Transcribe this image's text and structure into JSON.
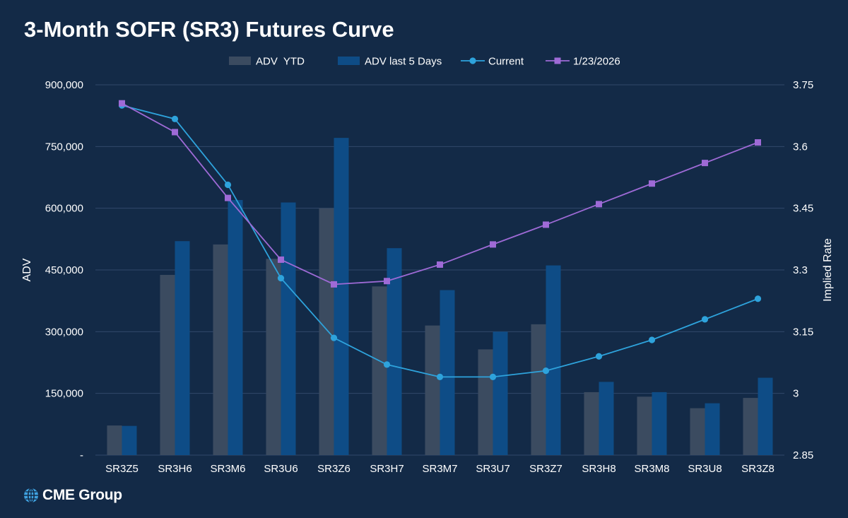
{
  "chart_data": {
    "type": "bar+line",
    "title": "3-Month SOFR (SR3) Futures Curve",
    "categories": [
      "SR3Z5",
      "SR3H6",
      "SR3M6",
      "SR3U6",
      "SR3Z6",
      "SR3H7",
      "SR3M7",
      "SR3U7",
      "SR3Z7",
      "SR3H8",
      "SR3M8",
      "SR3U8",
      "SR3Z8"
    ],
    "bar_series": [
      {
        "name": "ADV  YTD",
        "color": "#3b4b60",
        "axis": "left",
        "values": [
          72000,
          438000,
          512000,
          477000,
          600000,
          410000,
          315000,
          257000,
          318000,
          153000,
          142000,
          114000,
          139000
        ]
      },
      {
        "name": "ADV last 5 Days",
        "color": "#0e4c86",
        "axis": "left",
        "values": [
          71000,
          520000,
          620000,
          614000,
          771000,
          503000,
          401000,
          300000,
          461000,
          178000,
          153000,
          126000,
          188000
        ]
      }
    ],
    "line_series": [
      {
        "name": "Current",
        "color": "#2ea3dc",
        "marker": "circle",
        "axis": "right",
        "values": [
          3.7,
          3.667,
          3.507,
          3.28,
          3.135,
          3.07,
          3.04,
          3.04,
          3.055,
          3.09,
          3.13,
          3.18,
          3.23
        ]
      },
      {
        "name": "1/23/2026",
        "color": "#9e6ad6",
        "marker": "square",
        "axis": "right",
        "values": [
          3.705,
          3.635,
          3.475,
          3.325,
          3.265,
          3.273,
          3.313,
          3.362,
          3.41,
          3.46,
          3.51,
          3.56,
          3.61
        ]
      }
    ],
    "legend": [
      "ADV  YTD",
      "ADV last 5 Days",
      "Current",
      "1/23/2026"
    ],
    "legend_position": "top-center",
    "y_left": {
      "label": "ADV",
      "min": 0,
      "max": 900000,
      "ticks": [
        0,
        150000,
        300000,
        450000,
        600000,
        750000,
        900000
      ],
      "tick_labels": [
        "-",
        "150,000",
        "300,000",
        "450,000",
        "600,000",
        "750,000",
        "900,000"
      ]
    },
    "y_right": {
      "label": "Implied Rate",
      "min": 2.85,
      "max": 3.75,
      "ticks": [
        2.85,
        3.0,
        3.15,
        3.3,
        3.45,
        3.6,
        3.75
      ],
      "tick_labels": [
        "2.85",
        "3",
        "3.15",
        "3.3",
        "3.45",
        "3.6",
        "3.75"
      ]
    },
    "grid": true
  },
  "footer": {
    "logo_text": "CME Group"
  },
  "colors": {
    "background": "#132a47",
    "grid": "#32486a",
    "text": "#ffffff"
  }
}
